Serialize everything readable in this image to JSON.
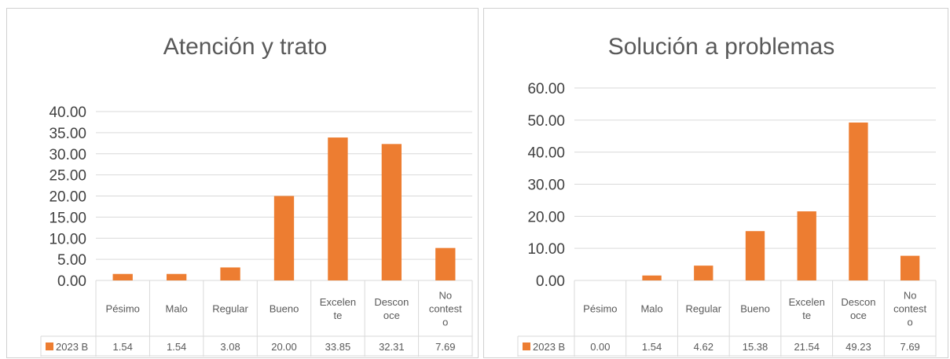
{
  "chart_data": [
    {
      "type": "bar",
      "title": "Atención y trato",
      "categories": [
        [
          "Pésimo"
        ],
        [
          "Malo"
        ],
        [
          "Regular"
        ],
        [
          "Bueno"
        ],
        [
          "Excelen",
          "te"
        ],
        [
          "Descon",
          "oce"
        ],
        [
          "No",
          "contest",
          "o"
        ]
      ],
      "yticks": [
        "0.00",
        "5.00",
        "10.00",
        "15.00",
        "20.00",
        "25.00",
        "30.00",
        "35.00",
        "40.00"
      ],
      "ylim": [
        0,
        40
      ],
      "series": [
        {
          "name": "2023 B",
          "values": [
            1.54,
            1.54,
            3.08,
            20.0,
            33.85,
            32.31,
            7.69
          ],
          "labels": [
            "1.54",
            "1.54",
            "3.08",
            "20.00",
            "33.85",
            "32.31",
            "7.69"
          ]
        }
      ],
      "data_table": true,
      "color": "#ED7D31",
      "grid": true
    },
    {
      "type": "bar",
      "title": "Solución a problemas",
      "categories": [
        [
          "Pésimo"
        ],
        [
          "Malo"
        ],
        [
          "Regular"
        ],
        [
          "Bueno"
        ],
        [
          "Excelen",
          "te"
        ],
        [
          "Descon",
          "oce"
        ],
        [
          "No",
          "contest",
          "o"
        ]
      ],
      "yticks": [
        "0.00",
        "10.00",
        "20.00",
        "30.00",
        "40.00",
        "50.00",
        "60.00"
      ],
      "ylim": [
        0,
        60
      ],
      "series": [
        {
          "name": "2023 B",
          "values": [
            0.0,
            1.54,
            4.62,
            15.38,
            21.54,
            49.23,
            7.69
          ],
          "labels": [
            "0.00",
            "1.54",
            "4.62",
            "15.38",
            "21.54",
            "49.23",
            "7.69"
          ]
        }
      ],
      "data_table": true,
      "color": "#ED7D31",
      "grid": true
    }
  ]
}
